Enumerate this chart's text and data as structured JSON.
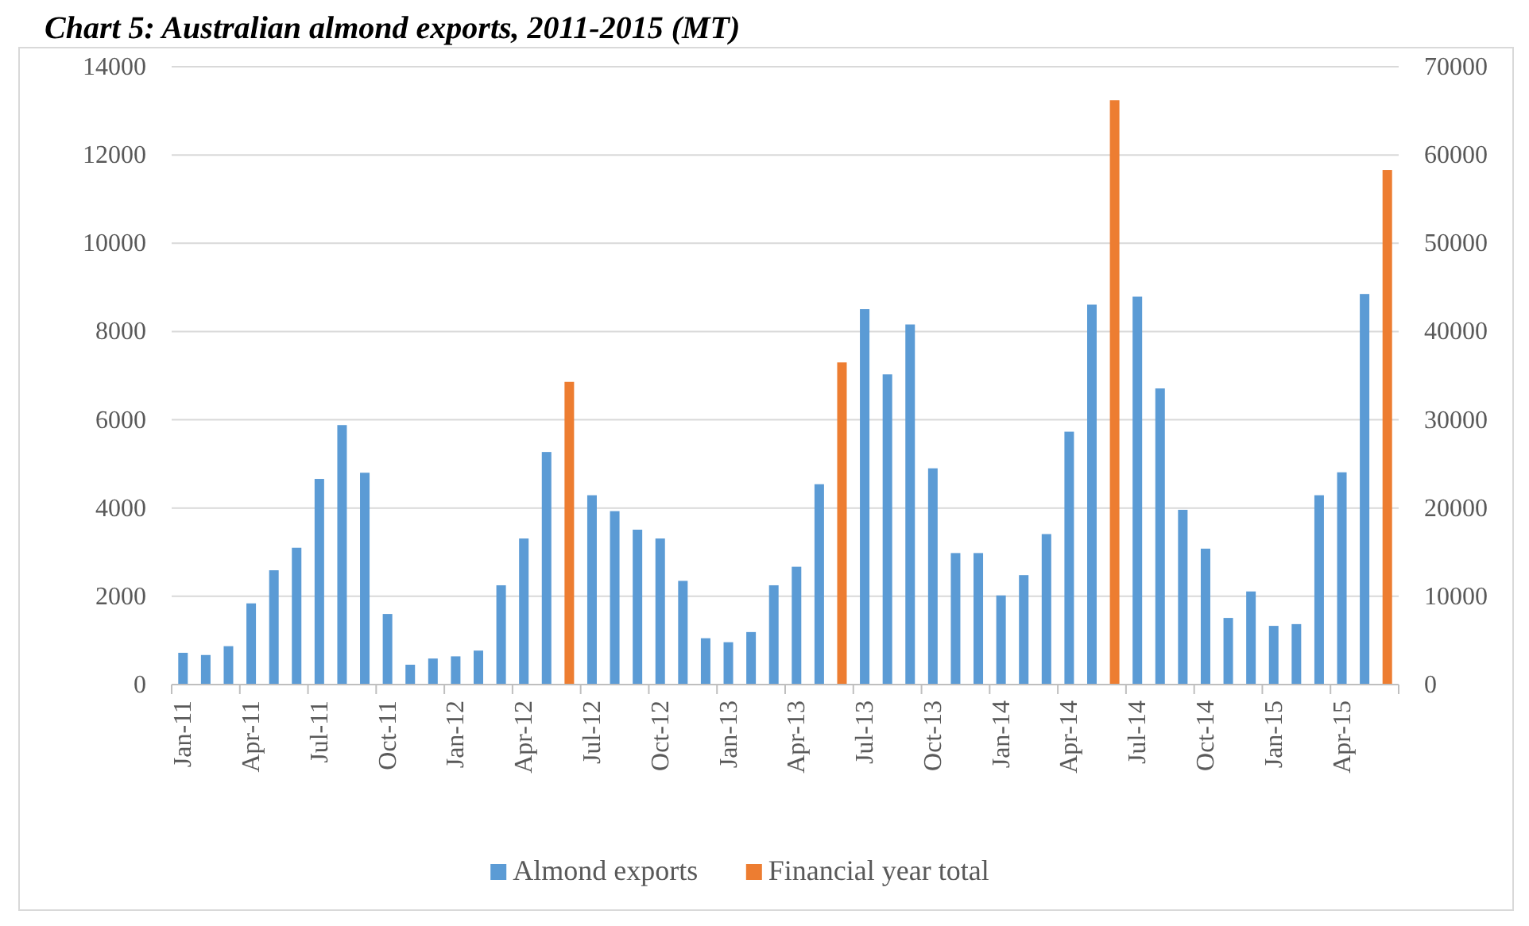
{
  "chart_data": {
    "type": "bar",
    "title": "Chart 5: Australian almond exports, 2011-2015 (MT)",
    "categories": [
      "Jan-11",
      null,
      null,
      "Apr-11",
      null,
      null,
      "Jul-11",
      null,
      null,
      "Oct-11",
      null,
      null,
      "Jan-12",
      null,
      null,
      "Apr-12",
      null,
      null,
      "Jul-12",
      null,
      null,
      "Oct-12",
      null,
      null,
      "Jan-13",
      null,
      null,
      "Apr-13",
      null,
      null,
      "Jul-13",
      null,
      null,
      "Oct-13",
      null,
      null,
      "Jan-14",
      null,
      null,
      "Apr-14",
      null,
      null,
      "Jul-14",
      null,
      null,
      "Oct-14",
      null,
      null,
      "Jan-15",
      null,
      null,
      "Apr-15",
      null,
      null
    ],
    "series": [
      {
        "name": "Almond exports",
        "color": "#5b9bd5",
        "values": [
          720,
          670,
          870,
          1840,
          2590,
          3100,
          4660,
          5880,
          4800,
          1600,
          450,
          590,
          640,
          770,
          2250,
          3310,
          5270,
          null,
          4290,
          3930,
          3510,
          3310,
          2350,
          1050,
          960,
          1190,
          2250,
          2670,
          4540,
          null,
          8510,
          7030,
          8160,
          4900,
          2980,
          2980,
          2020,
          2480,
          3410,
          5730,
          8610,
          null,
          8790,
          6710,
          3960,
          3080,
          1510,
          2110,
          1330,
          1370,
          4290,
          4810,
          8850,
          null
        ]
      },
      {
        "name": "Financial year total",
        "color": "#ed7d31",
        "axis": "y2",
        "values": [
          null,
          null,
          null,
          null,
          null,
          null,
          null,
          null,
          null,
          null,
          null,
          null,
          null,
          null,
          null,
          null,
          null,
          34300,
          null,
          null,
          null,
          null,
          null,
          null,
          null,
          null,
          null,
          null,
          null,
          36500,
          null,
          null,
          null,
          null,
          null,
          null,
          null,
          null,
          null,
          null,
          null,
          66200,
          null,
          null,
          null,
          null,
          null,
          null,
          null,
          null,
          null,
          null,
          null,
          58300
        ]
      }
    ],
    "ylim": [
      0,
      14000
    ],
    "yticks": [
      0,
      2000,
      4000,
      6000,
      8000,
      10000,
      12000,
      14000
    ],
    "y2lim": [
      0,
      70000
    ],
    "y2ticks": [
      0,
      10000,
      20000,
      30000,
      40000,
      50000,
      60000,
      70000
    ],
    "grid": "y",
    "legend": "bottom"
  }
}
